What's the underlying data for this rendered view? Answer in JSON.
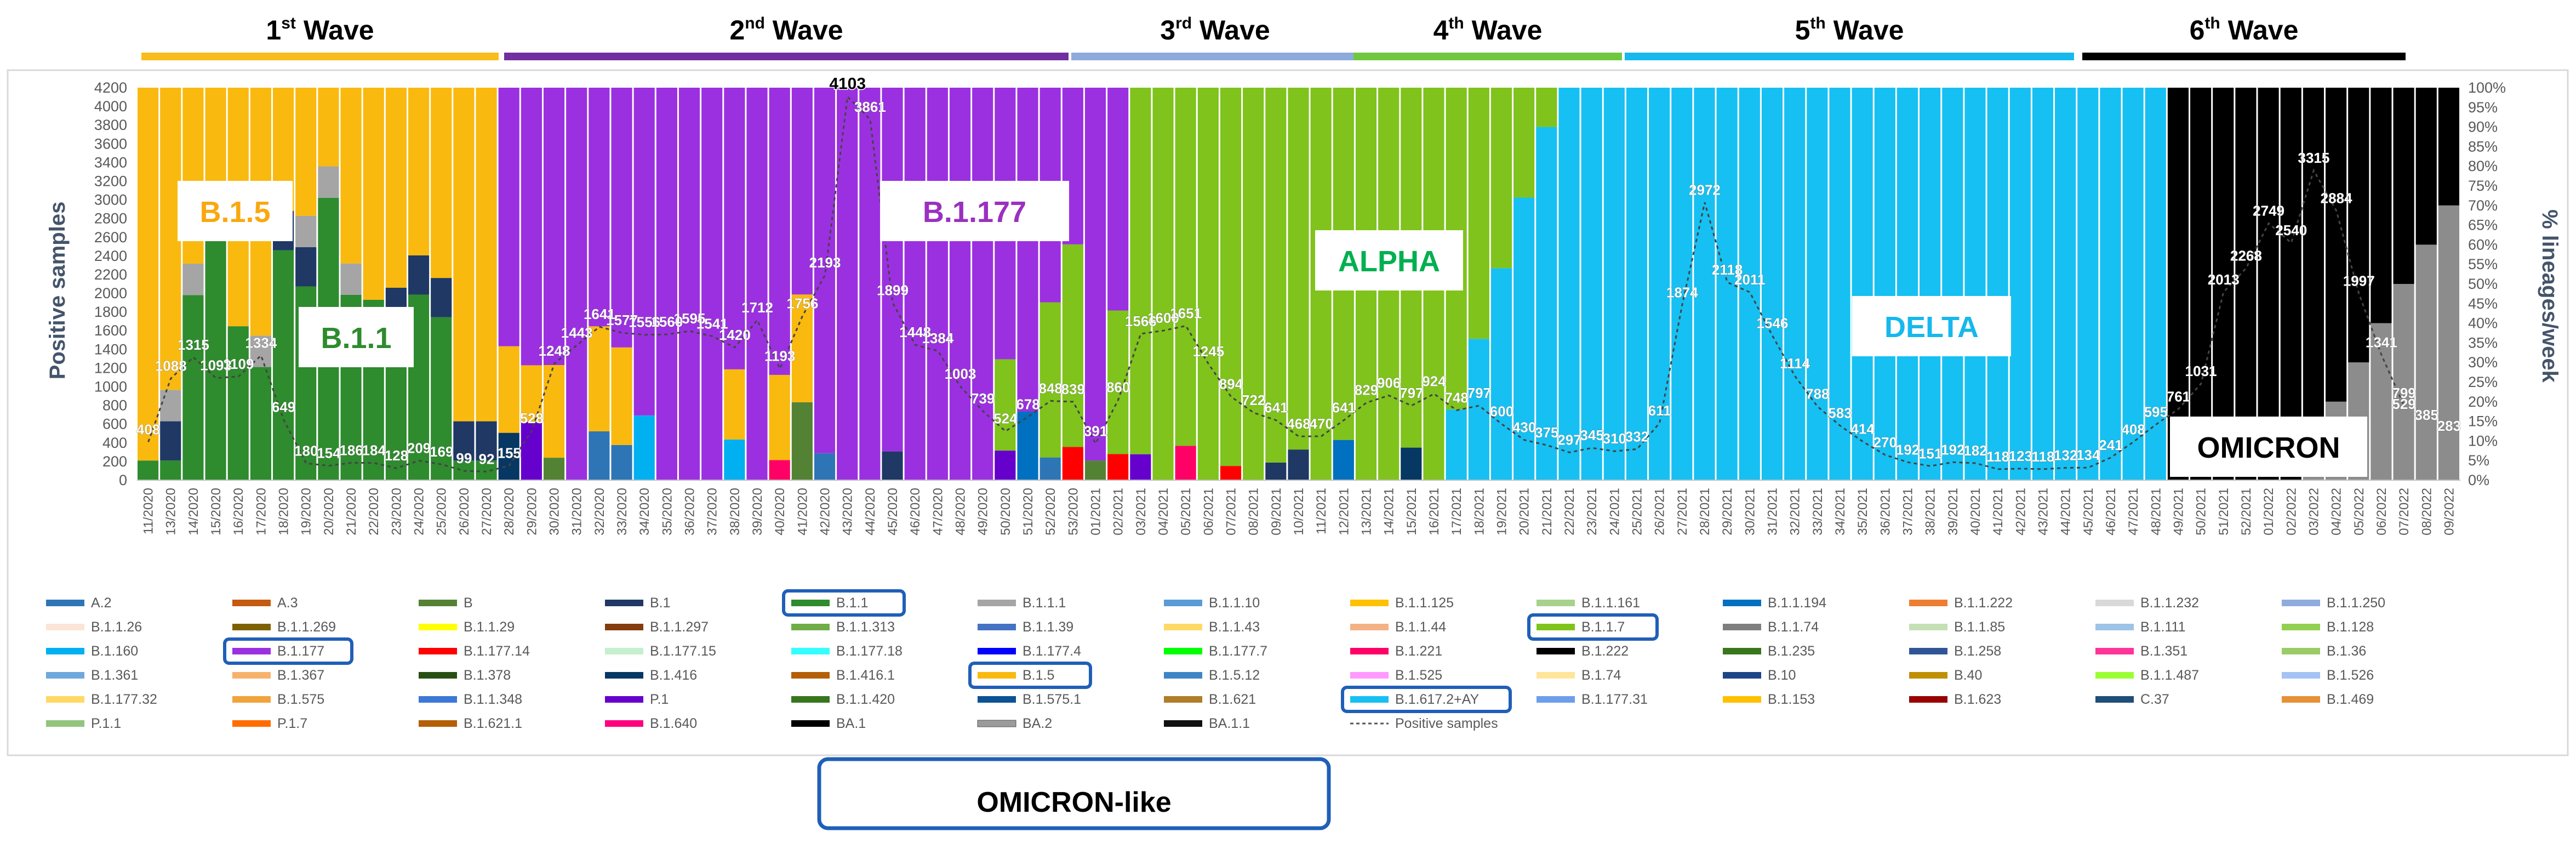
{
  "waves": [
    {
      "label": "1",
      "sup": "st",
      "word": " Wave",
      "color": "#f9bc1b"
    },
    {
      "label": "2",
      "sup": "nd",
      "word": " Wave",
      "color": "#7030a0"
    },
    {
      "label": "3",
      "sup": "rd",
      "word": " Wave",
      "color": "#8eaadb"
    },
    {
      "label": "4",
      "sup": "th",
      "word": " Wave",
      "color": "#70c841"
    },
    {
      "label": "5",
      "sup": "th",
      "word": " Wave",
      "color": "#16b8ed"
    },
    {
      "label": "6",
      "sup": "th",
      "word": " Wave",
      "color": "#000000"
    }
  ],
  "lineage_labels": [
    {
      "text": "B.1.5",
      "color": "#f9a80f"
    },
    {
      "text": "B.1.1",
      "color": "#2e8b2e"
    },
    {
      "text": "B.1.177",
      "color": "#9b30c0"
    },
    {
      "text": "ALPHA",
      "color": "#00b050"
    },
    {
      "text": "DELTA",
      "color": "#16b8ed"
    },
    {
      "text": "OMICRON",
      "color": "#000000"
    }
  ],
  "omicron_like": "OMICRON-like",
  "chart_data": {
    "type": "bar",
    "stacked": true,
    "title": "",
    "ylabel": "Positive samples",
    "y2label": "% lineages/week",
    "ylim": [
      0,
      4200
    ],
    "y2lim": [
      0,
      100
    ],
    "y_ticks": [
      "0",
      "200",
      "400",
      "600",
      "800",
      "1000",
      "1200",
      "1400",
      "1600",
      "1800",
      "2000",
      "2200",
      "2400",
      "2600",
      "2800",
      "3000",
      "3200",
      "3400",
      "3600",
      "3800",
      "4000",
      "4200"
    ],
    "y2_ticks": [
      "0%",
      "5%",
      "10%",
      "15%",
      "20%",
      "25%",
      "30%",
      "35%",
      "40%",
      "45%",
      "50%",
      "55%",
      "60%",
      "65%",
      "70%",
      "75%",
      "80%",
      "85%",
      "90%",
      "95%",
      "100%"
    ],
    "categories": [
      "11/2020",
      "13/2020",
      "14/2020",
      "15/2020",
      "16/2020",
      "17/2020",
      "18/2020",
      "19/2020",
      "20/2020",
      "21/2020",
      "22/2020",
      "23/2020",
      "24/2020",
      "25/2020",
      "26/2020",
      "27/2020",
      "28/2020",
      "29/2020",
      "30/2020",
      "31/2020",
      "32/2020",
      "33/2020",
      "34/2020",
      "35/2020",
      "36/2020",
      "37/2020",
      "38/2020",
      "39/2020",
      "40/2020",
      "41/2020",
      "42/2020",
      "43/2020",
      "44/2020",
      "45/2020",
      "46/2020",
      "47/2020",
      "48/2020",
      "49/2020",
      "50/2020",
      "51/2020",
      "52/2020",
      "53/2020",
      "01/2021",
      "02/2021",
      "03/2021",
      "04/2021",
      "05/2021",
      "06/2021",
      "07/2021",
      "08/2021",
      "09/2021",
      "10/2021",
      "11/2021",
      "12/2021",
      "13/2021",
      "14/2021",
      "15/2021",
      "16/2021",
      "17/2021",
      "18/2021",
      "19/2021",
      "20/2021",
      "21/2021",
      "22/2021",
      "23/2021",
      "24/2021",
      "25/2021",
      "26/2021",
      "27/2021",
      "28/2021",
      "29/2021",
      "30/2021",
      "31/2021",
      "32/2021",
      "33/2021",
      "34/2021",
      "35/2021",
      "36/2021",
      "37/2021",
      "38/2021",
      "39/2021",
      "40/2021",
      "41/2021",
      "42/2021",
      "43/2021",
      "44/2021",
      "45/2021",
      "46/2021",
      "47/2021",
      "48/2021",
      "49/2021",
      "50/2021",
      "51/2021",
      "52/2021",
      "01/2022",
      "02/2022",
      "03/2022",
      "04/2022",
      "05/2022",
      "06/2022",
      "07/2022",
      "08/2022",
      "09/2022"
    ],
    "tick_labels": [
      "11/2020",
      "13/2020",
      "14/2020",
      "15/2020",
      "16/2020",
      "17/2020",
      "18/2020",
      "19/2020",
      "20/2020",
      "21/2020",
      "22/2020",
      "23/2020",
      "24/2020",
      "25/2020",
      "26/2020",
      "27/2020",
      "28/2020",
      "29/2020",
      "30/2020",
      "31/2020",
      "32/2020",
      "33/2020",
      "34/2020",
      "35/2020",
      "36/2020",
      "37/2020",
      "38/2020",
      "39/2020",
      "40/2020",
      "41/2020",
      "42/2020",
      "43/2020",
      "44/2020",
      "45/2020",
      "46/2020",
      "47/2020",
      "48/2020",
      "49/2020",
      "50/2020",
      "51/2020",
      "52/2020",
      "53/2020",
      "01/2021",
      "02/2021",
      "03/2021",
      "04/2021",
      "05/2021",
      "06/2021",
      "07/2021",
      "08/2021",
      "09/2021",
      "10/2021",
      "11/2021",
      "12/2021",
      "13/2021",
      "14/2021",
      "15/2021",
      "16/2021",
      "17/2021",
      "18/2021",
      "19/2021",
      "20/2021",
      "21/2021",
      "22/2021",
      "23/2021",
      "24/2021",
      "25/2021",
      "26/2021",
      "27/2021",
      "28/2021",
      "29/2021",
      "30/2021",
      "31/2021",
      "32/2021",
      "33/2021",
      "34/2021",
      "35/2021",
      "36/2021",
      "37/2021",
      "38/2021",
      "39/2021",
      "40/2021",
      "41/2021",
      "42/2021",
      "43/2021",
      "44/2021",
      "45/2021",
      "46/2021",
      "47/2021",
      "48/2021",
      "49/2021",
      "50/2021",
      "51/2021",
      "52/2021",
      "01/2022",
      "02/2022",
      "03/2022",
      "04/2022",
      "05/2022",
      "06/2022",
      "07/2022",
      "08/2022",
      "09/2022"
    ],
    "wave_spans": [
      [
        0,
        16
      ],
      [
        16,
        40
      ],
      [
        40,
        51
      ],
      [
        51,
        63
      ],
      [
        63,
        81
      ],
      [
        81,
        101
      ]
    ],
    "dominant": [
      {
        "lineage": "B.1.5",
        "start": 0,
        "end": 16,
        "color": "#f9b90f"
      },
      {
        "lineage": "B.1.1",
        "start": 2,
        "end": 14,
        "color": "#2e8b2e"
      },
      {
        "lineage": "B.1.177",
        "start": 16,
        "end": 44,
        "color": "#9b30e0"
      },
      {
        "lineage": "B.1.1.7",
        "start": 44,
        "end": 63,
        "color": "#7fc31c"
      },
      {
        "lineage": "B.1.617.2+AY",
        "start": 63,
        "end": 90,
        "color": "#16c0f2"
      },
      {
        "lineage": "BA.1/BA.2",
        "start": 90,
        "end": 101,
        "color": "#000000"
      }
    ],
    "positive_samples": {
      "name": "Positive samples",
      "values": [
        408,
        1088,
        1315,
        1093,
        1109,
        1334,
        649,
        180,
        154,
        186,
        184,
        128,
        209,
        169,
        99,
        92,
        155,
        528,
        1248,
        1443,
        1641,
        1577,
        1556,
        1560,
        1595,
        1541,
        1420,
        1712,
        1193,
        1756,
        2193,
        4103,
        3861,
        1899,
        1448,
        1384,
        1003,
        739,
        524,
        678,
        848,
        839,
        391,
        860,
        1566,
        1600,
        1651,
        1245,
        894,
        722,
        641,
        468,
        470,
        641,
        829,
        906,
        797,
        924,
        748,
        797,
        600,
        430,
        375,
        297,
        345,
        310,
        332,
        611,
        1874,
        2972,
        2118,
        2011,
        1546,
        1114,
        788,
        583,
        414,
        270,
        192,
        151,
        192,
        182,
        118,
        123,
        118,
        132,
        134,
        241,
        408,
        595,
        761,
        1031,
        2013,
        2268,
        2749,
        2540,
        3315,
        2884,
        1997,
        1341,
        799
      ],
      "labels": [
        "408",
        "1088",
        "1315",
        "1093",
        "1109",
        "1334",
        "649",
        "180",
        "154",
        "186",
        "184",
        "128",
        "209",
        "169",
        "99",
        "92",
        "155",
        "528",
        "1248",
        "1443",
        "1641",
        "1577",
        "1556",
        "1560",
        "1595",
        "1541",
        "1420",
        "1712",
        "1193",
        "1756",
        "2193",
        "4103",
        "3861",
        "1899",
        "1448",
        "1384",
        "1003",
        "739",
        "524",
        "678",
        "848",
        "839",
        "391",
        "860",
        "1566",
        "1600",
        "1651",
        "1245",
        "894",
        "722",
        "641",
        "468",
        "470",
        "641",
        "829",
        "906",
        "797",
        "924",
        "748",
        "797",
        "600",
        "430",
        "375",
        "297",
        "345",
        "310",
        "332",
        "611",
        "1874",
        "2972",
        "2118",
        "2011",
        "1546",
        "1114",
        "788",
        "583",
        "414",
        "270",
        "192",
        "151",
        "192",
        "182",
        "118",
        "123",
        "118",
        "132",
        "134",
        "241",
        "408",
        "595",
        "761",
        "1031",
        "2013",
        "2268",
        "2749",
        "2540",
        "3315",
        "2884",
        "1997",
        "1341",
        "799"
      ]
    },
    "extra_labels": [
      "529",
      "385",
      "283"
    ],
    "legend": [
      {
        "name": "A.2",
        "color": "#2e75b6"
      },
      {
        "name": "A.3",
        "color": "#c55a11"
      },
      {
        "name": "B",
        "color": "#548235"
      },
      {
        "name": "B.1",
        "color": "#1f3864"
      },
      {
        "name": "B.1.1",
        "color": "#2e8b2e"
      },
      {
        "name": "B.1.1.1",
        "color": "#a5a5a5"
      },
      {
        "name": "B.1.1.10",
        "color": "#5b9bd5"
      },
      {
        "name": "B.1.1.125",
        "color": "#ffc000"
      },
      {
        "name": "B.1.1.161",
        "color": "#a9d18e"
      },
      {
        "name": "B.1.1.194",
        "color": "#0070c0"
      },
      {
        "name": "B.1.1.222",
        "color": "#ed7d31"
      },
      {
        "name": "B.1.1.232",
        "color": "#d9d9d9"
      },
      {
        "name": "B.1.1.250",
        "color": "#8faadc"
      },
      {
        "name": "B.1.1.26",
        "color": "#fbe5d6"
      },
      {
        "name": "B.1.1.269",
        "color": "#7f6000"
      },
      {
        "name": "B.1.1.29",
        "color": "#ffff00"
      },
      {
        "name": "B.1.1.297",
        "color": "#843c0c"
      },
      {
        "name": "B.1.1.313",
        "color": "#70ad47"
      },
      {
        "name": "B.1.1.39",
        "color": "#4472c4"
      },
      {
        "name": "B.1.1.43",
        "color": "#ffd966"
      },
      {
        "name": "B.1.1.44",
        "color": "#f4b183"
      },
      {
        "name": "B.1.1.7",
        "color": "#7fc31c"
      },
      {
        "name": "B.1.1.74",
        "color": "#7f7f7f"
      },
      {
        "name": "B.1.1.85",
        "color": "#c5e0b4"
      },
      {
        "name": "B.1.111",
        "color": "#9dc3e6"
      },
      {
        "name": "B.1.128",
        "color": "#92d050"
      },
      {
        "name": "B.1.160",
        "color": "#00b0f0"
      },
      {
        "name": "B.1.177",
        "color": "#9b30e0"
      },
      {
        "name": "B.1.177.14",
        "color": "#ff0000"
      },
      {
        "name": "B.1.177.15",
        "color": "#c6efce"
      },
      {
        "name": "B.1.177.18",
        "color": "#33ffff"
      },
      {
        "name": "B.1.177.4",
        "color": "#0000ff"
      },
      {
        "name": "B.1.177.7",
        "color": "#00ff00"
      },
      {
        "name": "B.1.221",
        "color": "#ff0066"
      },
      {
        "name": "B.1.222",
        "color": "#000000"
      },
      {
        "name": "B.1.235",
        "color": "#38761d"
      },
      {
        "name": "B.1.258",
        "color": "#2f5597"
      },
      {
        "name": "B.1.351",
        "color": "#ff3399"
      },
      {
        "name": "B.1.36",
        "color": "#99cc66"
      },
      {
        "name": "B.1.361",
        "color": "#6fa8dc"
      },
      {
        "name": "B.1.367",
        "color": "#f6b26b"
      },
      {
        "name": "B.1.378",
        "color": "#274e13"
      },
      {
        "name": "B.1.416",
        "color": "#073763"
      },
      {
        "name": "B.1.416.1",
        "color": "#b45f06"
      },
      {
        "name": "B.1.5",
        "color": "#f9b90f"
      },
      {
        "name": "B.1.5.12",
        "color": "#3d85c6"
      },
      {
        "name": "B.1.525",
        "color": "#ff99ff"
      },
      {
        "name": "B.1.74",
        "color": "#ffe599"
      },
      {
        "name": "B.10",
        "color": "#1c4587"
      },
      {
        "name": "B.40",
        "color": "#bf9000"
      },
      {
        "name": "B.1.1.487",
        "color": "#99ff33"
      },
      {
        "name": "B.1.526",
        "color": "#a4c2f4"
      },
      {
        "name": "B.1.177.32",
        "color": "#ffd966"
      },
      {
        "name": "B.1.575",
        "color": "#f1a33c"
      },
      {
        "name": "B.1.1.348",
        "color": "#3c78d8"
      },
      {
        "name": "P.1",
        "color": "#6600cc"
      },
      {
        "name": "B.1.1.420",
        "color": "#38761d"
      },
      {
        "name": "B.1.575.1",
        "color": "#0b5394"
      },
      {
        "name": "B.1.621",
        "color": "#b07d2b"
      },
      {
        "name": "B.1.617.2+AY",
        "color": "#16c0f2"
      },
      {
        "name": "B.1.177.31",
        "color": "#6d9eeb"
      },
      {
        "name": "B.1.153",
        "color": "#ffc000"
      },
      {
        "name": "B.1.623",
        "color": "#990000"
      },
      {
        "name": "C.37",
        "color": "#1f4e79"
      },
      {
        "name": "B.1.469",
        "color": "#e69138"
      },
      {
        "name": "P.1.1",
        "color": "#93c47d"
      },
      {
        "name": "P.1.7",
        "color": "#ff6d01"
      },
      {
        "name": "B.1.621.1",
        "color": "#b45f06"
      },
      {
        "name": "B.1.640",
        "color": "#ff0080"
      },
      {
        "name": "BA.1",
        "color": "#000000"
      },
      {
        "name": "BA.2",
        "color": "#8c8c8c"
      },
      {
        "name": "BA.1.1",
        "color": "#111111"
      },
      {
        "name": "Positive samples",
        "color": "#555555"
      }
    ],
    "highlighted": [
      "B.1.1",
      "B.1.1.7",
      "B.1.177",
      "B.1.5",
      "B.1.617.2+AY"
    ]
  }
}
